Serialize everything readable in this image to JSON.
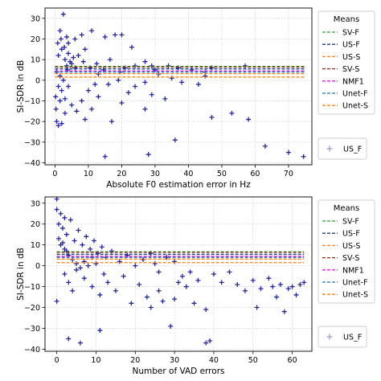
{
  "chart_data": [
    {
      "type": "scatter",
      "xlabel": "Absolute F0 estimation error in Hz",
      "ylabel": "SI-SDR in dB",
      "xlim": [
        -3,
        77
      ],
      "ylim": [
        -41,
        35
      ],
      "xticks": [
        "0",
        "10",
        "20",
        "30",
        "40",
        "50",
        "60",
        "70"
      ],
      "yticks": [
        "30",
        "20",
        "10",
        "0",
        "−10",
        "−20",
        "−30",
        "−40"
      ],
      "grid": true,
      "legend": {
        "title": "Means",
        "placement": "outside-right",
        "entries": [
          "SV-F",
          "US-F",
          "US-S",
          "SV-S",
          "NMF1",
          "Unet-F",
          "Unet-S"
        ],
        "colors": [
          "#2ca02c",
          "#1f3a8a",
          "#ff7f0e",
          "#8c2d19",
          "#e815e8",
          "#1f77b4",
          "#ff7f0e"
        ],
        "scatter_label": "US_F"
      },
      "mean_lines": [
        {
          "name": "SV-F",
          "y": 6.7,
          "color": "#2ca02c"
        },
        {
          "name": "US-F",
          "y": 5.5,
          "color": "#1f3a8a"
        },
        {
          "name": "US-S",
          "y": 1.5,
          "color": "#ff7f0e"
        },
        {
          "name": "SV-S",
          "y": 6.4,
          "color": "#8c2d19"
        },
        {
          "name": "NMF1",
          "y": 4.5,
          "color": "#e815e8"
        },
        {
          "name": "Unet-F",
          "y": 4.0,
          "color": "#1f77b4"
        },
        {
          "name": "Unet-S",
          "y": 3.2,
          "color": "#ff7f0e"
        }
      ],
      "mean_lines_xrange": [
        0,
        75
      ],
      "series": [
        {
          "name": "US_F",
          "color": "#00008b",
          "points": [
            [
              1.0,
              -22.0
            ],
            [
              0.5,
              -20.0
            ],
            [
              2.0,
              -21.0
            ],
            [
              0.3,
              -14.0
            ],
            [
              1.5,
              -10.0
            ],
            [
              0.2,
              -8.0
            ],
            [
              3.0,
              -9.0
            ],
            [
              2.0,
              -5.0
            ],
            [
              1.0,
              -3.0
            ],
            [
              4.0,
              -3.0
            ],
            [
              2.5,
              32.0
            ],
            [
              1.5,
              24.0
            ],
            [
              3.5,
              21.0
            ],
            [
              4.0,
              18.0
            ],
            [
              6.0,
              20.0
            ],
            [
              8.0,
              22.0
            ],
            [
              11.0,
              24.0
            ],
            [
              15.0,
              21.0
            ],
            [
              18.0,
              22.0
            ],
            [
              20.0,
              22.0
            ],
            [
              23.0,
              16.0
            ],
            [
              27.0,
              9.0
            ],
            [
              29.0,
              7.0
            ],
            [
              30.0,
              5.0
            ],
            [
              34.0,
              7.0
            ],
            [
              37.0,
              6.0
            ],
            [
              41.0,
              5.0
            ],
            [
              43.0,
              -2.0
            ],
            [
              45.0,
              2.0
            ],
            [
              8.0,
              -10.0
            ],
            [
              9.0,
              -19.0
            ],
            [
              11.0,
              -14.0
            ],
            [
              13.0,
              -8.0
            ],
            [
              17.0,
              -20.0
            ],
            [
              20.0,
              -11.0
            ],
            [
              22.0,
              -6.0
            ],
            [
              24.0,
              -3.0
            ],
            [
              27.0,
              -14.0
            ],
            [
              33.0,
              -9.0
            ],
            [
              15.0,
              -37.0
            ],
            [
              28.0,
              -36.0
            ],
            [
              36.0,
              -29.0
            ],
            [
              47.0,
              -18.0
            ],
            [
              53.0,
              -16.0
            ],
            [
              57.0,
              7.0
            ],
            [
              58.0,
              -19.0
            ],
            [
              63.0,
              -32.0
            ],
            [
              70.0,
              -35.0
            ],
            [
              74.5,
              -37.0
            ],
            [
              27.0,
              -1.0
            ],
            [
              29.0,
              -7.0
            ],
            [
              31.0,
              3.0
            ],
            [
              35.0,
              1.0
            ],
            [
              38.0,
              -1.0
            ],
            [
              45.0,
              4.0
            ],
            [
              47.0,
              6.0
            ],
            [
              13.0,
              3.0
            ],
            [
              16.0,
              -2.0
            ],
            [
              19.0,
              0.0
            ],
            [
              5.0,
              -12.0
            ],
            [
              6.5,
              -15.0
            ],
            [
              3.0,
              -16.0
            ],
            [
              10.0,
              -5.0
            ],
            [
              12.0,
              -2.0
            ],
            [
              7.0,
              12.0
            ],
            [
              9.0,
              15.0
            ],
            [
              1.0,
              12.0
            ],
            [
              2.0,
              15.0
            ],
            [
              3.0,
              10.0
            ],
            [
              4.0,
              13.0
            ],
            [
              5.0,
              8.0
            ],
            [
              6.0,
              6.0
            ],
            [
              0.5,
              4.0
            ],
            [
              1.5,
              2.0
            ],
            [
              2.5,
              0.0
            ],
            [
              3.5,
              7.0
            ],
            [
              4.5,
              9.0
            ],
            [
              5.5,
              11.0
            ],
            [
              0.8,
              18.0
            ],
            [
              1.8,
              20.0
            ],
            [
              2.8,
              16.0
            ],
            [
              3.8,
              5.0
            ],
            [
              8.5,
              9.0
            ],
            [
              10.5,
              6.0
            ],
            [
              12.5,
              8.0
            ],
            [
              14.5,
              5.0
            ],
            [
              16.5,
              10.0
            ],
            [
              19.5,
              4.0
            ],
            [
              21.0,
              6.0
            ],
            [
              24.0,
              7.0
            ]
          ]
        }
      ]
    },
    {
      "type": "scatter",
      "xlabel": "Number of VAD errors",
      "ylabel": "SI-SDR in dB",
      "xlim": [
        -3,
        65
      ],
      "ylim": [
        -41,
        33
      ],
      "xticks": [
        "0",
        "10",
        "20",
        "30",
        "40",
        "50",
        "60"
      ],
      "yticks": [
        "30",
        "20",
        "10",
        "0",
        "−10",
        "−20",
        "−30",
        "−40"
      ],
      "grid": true,
      "legend": {
        "title": "Means",
        "placement": "outside-right",
        "entries": [
          "SV-F",
          "US-F",
          "US-S",
          "SV-S",
          "NMF1",
          "Unet-F",
          "Unet-S"
        ],
        "colors": [
          "#2ca02c",
          "#1f3a8a",
          "#ff7f0e",
          "#8c2d19",
          "#e815e8",
          "#1f77b4",
          "#ff7f0e"
        ],
        "scatter_label": "US_F"
      },
      "mean_lines": [
        {
          "name": "SV-F",
          "y": 6.7,
          "color": "#2ca02c"
        },
        {
          "name": "US-F",
          "y": 5.5,
          "color": "#1f3a8a"
        },
        {
          "name": "US-S",
          "y": 1.5,
          "color": "#ff7f0e"
        },
        {
          "name": "SV-S",
          "y": 6.4,
          "color": "#8c2d19"
        },
        {
          "name": "NMF1",
          "y": 4.5,
          "color": "#e815e8"
        },
        {
          "name": "Unet-F",
          "y": 4.0,
          "color": "#1f77b4"
        },
        {
          "name": "Unet-S",
          "y": 3.2,
          "color": "#ff7f0e"
        }
      ],
      "mean_lines_xrange": [
        0,
        63
      ],
      "series": [
        {
          "name": "US_F",
          "color": "#00008b",
          "points": [
            [
              0.0,
              32.0
            ],
            [
              0.0,
              27.0
            ],
            [
              1.0,
              25.0
            ],
            [
              2.0,
              23.0
            ],
            [
              0.0,
              -17.0
            ],
            [
              3.0,
              -35.0
            ],
            [
              6.0,
              -37.0
            ],
            [
              11.0,
              -31.0
            ],
            [
              0.5,
              20.0
            ],
            [
              1.5,
              18.0
            ],
            [
              2.5,
              15.0
            ],
            [
              3.5,
              22.0
            ],
            [
              4.5,
              12.0
            ],
            [
              5.5,
              17.0
            ],
            [
              6.5,
              10.0
            ],
            [
              7.5,
              14.0
            ],
            [
              8.5,
              8.0
            ],
            [
              9.5,
              12.0
            ],
            [
              10.5,
              6.0
            ],
            [
              11.5,
              9.0
            ],
            [
              12.5,
              4.0
            ],
            [
              14.0,
              7.0
            ],
            [
              16.0,
              2.0
            ],
            [
              18.0,
              5.0
            ],
            [
              20.0,
              0.0
            ],
            [
              22.0,
              3.0
            ],
            [
              24.0,
              6.0
            ],
            [
              25.0,
              1.0
            ],
            [
              26.0,
              -3.0
            ],
            [
              28.0,
              4.0
            ],
            [
              30.0,
              2.0
            ],
            [
              31.0,
              -8.0
            ],
            [
              2.0,
              -4.0
            ],
            [
              3.0,
              -8.0
            ],
            [
              4.0,
              -12.0
            ],
            [
              5.0,
              -2.0
            ],
            [
              7.0,
              -6.0
            ],
            [
              9.0,
              -10.0
            ],
            [
              11.0,
              -14.0
            ],
            [
              12.0,
              -4.0
            ],
            [
              13.0,
              -8.0
            ],
            [
              15.0,
              -12.0
            ],
            [
              17.0,
              -5.0
            ],
            [
              19.0,
              -18.0
            ],
            [
              21.0,
              -9.0
            ],
            [
              23.0,
              -15.0
            ],
            [
              24.0,
              -20.0
            ],
            [
              26.0,
              -12.0
            ],
            [
              27.0,
              -17.0
            ],
            [
              29.0,
              -29.0
            ],
            [
              30.0,
              -16.0
            ],
            [
              32.0,
              -5.0
            ],
            [
              33.0,
              -10.0
            ],
            [
              34.0,
              -3.0
            ],
            [
              35.0,
              -18.0
            ],
            [
              36.0,
              -7.0
            ],
            [
              38.0,
              -21.0
            ],
            [
              38.0,
              -37.0
            ],
            [
              39.0,
              -36.0
            ],
            [
              40.0,
              -4.0
            ],
            [
              42.0,
              -8.0
            ],
            [
              44.0,
              -3.0
            ],
            [
              46.0,
              -9.0
            ],
            [
              48.0,
              -12.0
            ],
            [
              50.0,
              -7.0
            ],
            [
              51.0,
              -20.0
            ],
            [
              52.0,
              -11.0
            ],
            [
              54.0,
              -6.0
            ],
            [
              55.0,
              -10.0
            ],
            [
              56.0,
              -15.0
            ],
            [
              57.0,
              -9.0
            ],
            [
              58.0,
              -22.0
            ],
            [
              59.0,
              -11.0
            ],
            [
              60.0,
              -10.0
            ],
            [
              61.0,
              -14.0
            ],
            [
              62.0,
              -9.0
            ],
            [
              63.0,
              -8.0
            ],
            [
              1.0,
              10.0
            ],
            [
              2.0,
              8.0
            ],
            [
              3.0,
              5.0
            ],
            [
              4.0,
              3.0
            ],
            [
              5.0,
              1.0
            ],
            [
              6.0,
              -1.0
            ],
            [
              7.0,
              2.0
            ],
            [
              8.0,
              0.0
            ],
            [
              9.0,
              4.0
            ],
            [
              10.0,
              1.0
            ],
            [
              0.5,
              13.0
            ],
            [
              1.5,
              11.0
            ],
            [
              2.5,
              7.0
            ]
          ]
        }
      ]
    }
  ]
}
